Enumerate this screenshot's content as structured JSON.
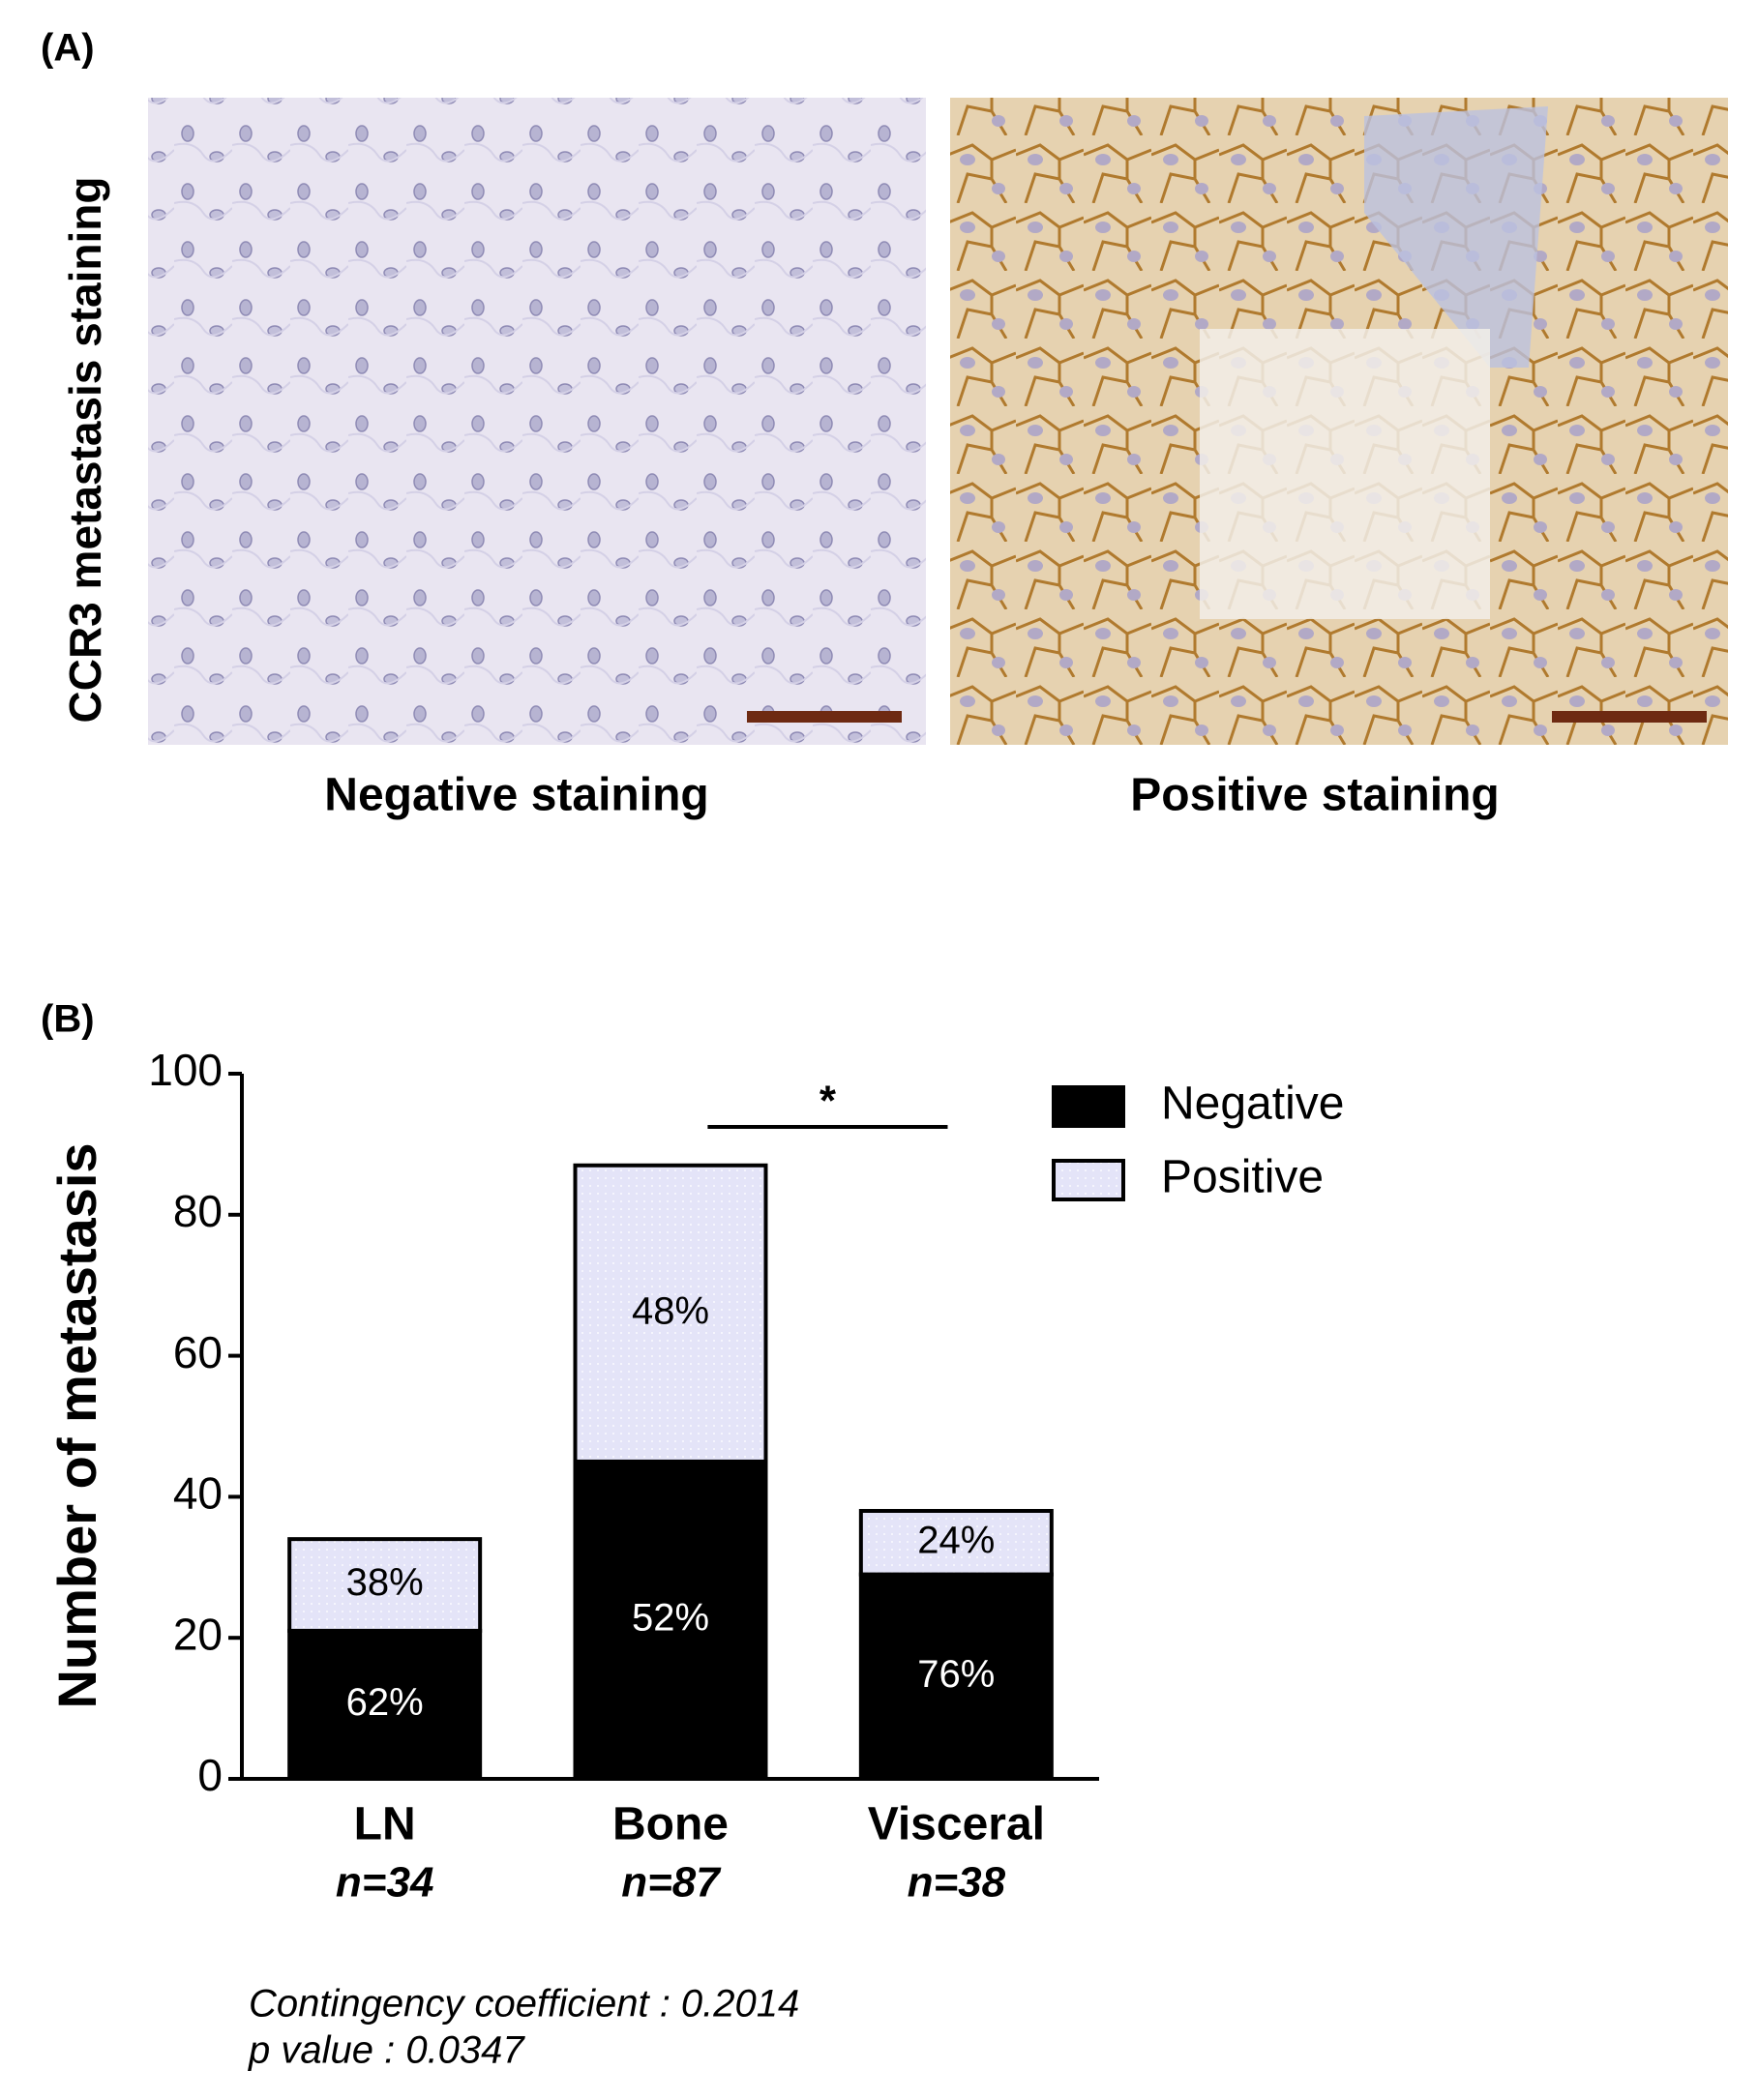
{
  "panel_a": {
    "label": "(A)",
    "y_label": "CCR3 metastasis staining",
    "captions": [
      "Negative staining",
      "Positive staining"
    ]
  },
  "chart_data": {
    "type": "stacked_bar",
    "panel_label": "(B)",
    "ylabel": "Number of metastasis",
    "categories": [
      "LN",
      "Bone",
      "Visceral"
    ],
    "sublabels": [
      "n=34",
      "n=87",
      "n=38"
    ],
    "series": [
      {
        "name": "Negative",
        "color": "#000000",
        "values": [
          21,
          45,
          29
        ],
        "segment_labels": [
          "62%",
          "52%",
          "76%"
        ]
      },
      {
        "name": "Positive",
        "color": "#e4e4f8",
        "values": [
          13,
          42,
          9
        ],
        "segment_labels": [
          "38%",
          "48%",
          "24%"
        ]
      }
    ],
    "ylim": [
      0,
      100
    ],
    "yticks": [
      0,
      20,
      40,
      60,
      80,
      100
    ],
    "grid": false,
    "legend": "upper right",
    "significance": {
      "text": "*",
      "from": 1,
      "to": 2
    },
    "notes": [
      "Contingency coefficient : 0.2014",
      "p value : 0.0347"
    ]
  }
}
